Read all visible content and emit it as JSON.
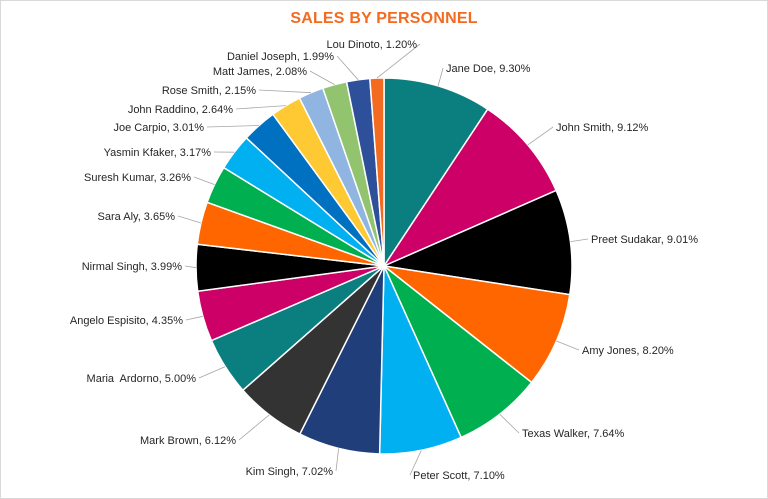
{
  "chart_data": {
    "type": "pie",
    "title": "SALES BY PERSONNEL",
    "title_color": "#f26b21",
    "slices": [
      {
        "name": "Jane Doe",
        "value": 9.3,
        "label": "Jane Doe, 9.30%",
        "color": "#0b7f7f"
      },
      {
        "name": "John Smith",
        "value": 9.12,
        "label": "John Smith, 9.12%",
        "color": "#cc0066"
      },
      {
        "name": "Preet Sudakar",
        "value": 9.01,
        "label": "Preet Sudakar, 9.01%",
        "color": "#000000"
      },
      {
        "name": "Amy Jones",
        "value": 8.2,
        "label": "Amy Jones, 8.20%",
        "color": "#ff6600"
      },
      {
        "name": "Texas Walker",
        "value": 7.64,
        "label": "Texas Walker, 7.64%",
        "color": "#00b050"
      },
      {
        "name": "Peter Scott",
        "value": 7.1,
        "label": "Peter Scott, 7.10%",
        "color": "#00b0f0"
      },
      {
        "name": "Kim Singh",
        "value": 7.02,
        "label": "Kim Singh, 7.02%",
        "color": "#203f7a"
      },
      {
        "name": "Mark Brown",
        "value": 6.12,
        "label": "Mark Brown, 6.12%",
        "color": "#333333"
      },
      {
        "name": "Maria Ardorno",
        "value": 5.0,
        "label": "Maria  Ardorno, 5.00%",
        "color": "#0b7f7f"
      },
      {
        "name": "Angelo Espisito",
        "value": 4.35,
        "label": "Angelo Espisito, 4.35%",
        "color": "#cc0066"
      },
      {
        "name": "Nirmal Singh",
        "value": 3.99,
        "label": "Nirmal Singh, 3.99%",
        "color": "#000000"
      },
      {
        "name": "Sara Aly",
        "value": 3.65,
        "label": "Sara Aly, 3.65%",
        "color": "#ff6600"
      },
      {
        "name": "Suresh Kumar",
        "value": 3.26,
        "label": "Suresh Kumar, 3.26%",
        "color": "#00b050"
      },
      {
        "name": "Yasmin Kfaker",
        "value": 3.17,
        "label": "Yasmin Kfaker, 3.17%",
        "color": "#00b0f0"
      },
      {
        "name": "Joe Carpio",
        "value": 3.01,
        "label": "Joe Carpio, 3.01%",
        "color": "#0070c0"
      },
      {
        "name": "John Raddino",
        "value": 2.64,
        "label": "John Raddino, 2.64%",
        "color": "#ffc933"
      },
      {
        "name": "Rose Smith",
        "value": 2.15,
        "label": "Rose Smith, 2.15%",
        "color": "#8fb5e0"
      },
      {
        "name": "Matt James",
        "value": 2.08,
        "label": "Matt James, 2.08%",
        "color": "#92c46f"
      },
      {
        "name": "Daniel Joseph",
        "value": 1.99,
        "label": "Daniel Joseph, 1.99%",
        "color": "#2e509a"
      },
      {
        "name": "Lou Dinoto",
        "value": 1.2,
        "label": "Lou Dinoto, 1.20%",
        "color": "#f26b21"
      }
    ],
    "legend": "none"
  }
}
